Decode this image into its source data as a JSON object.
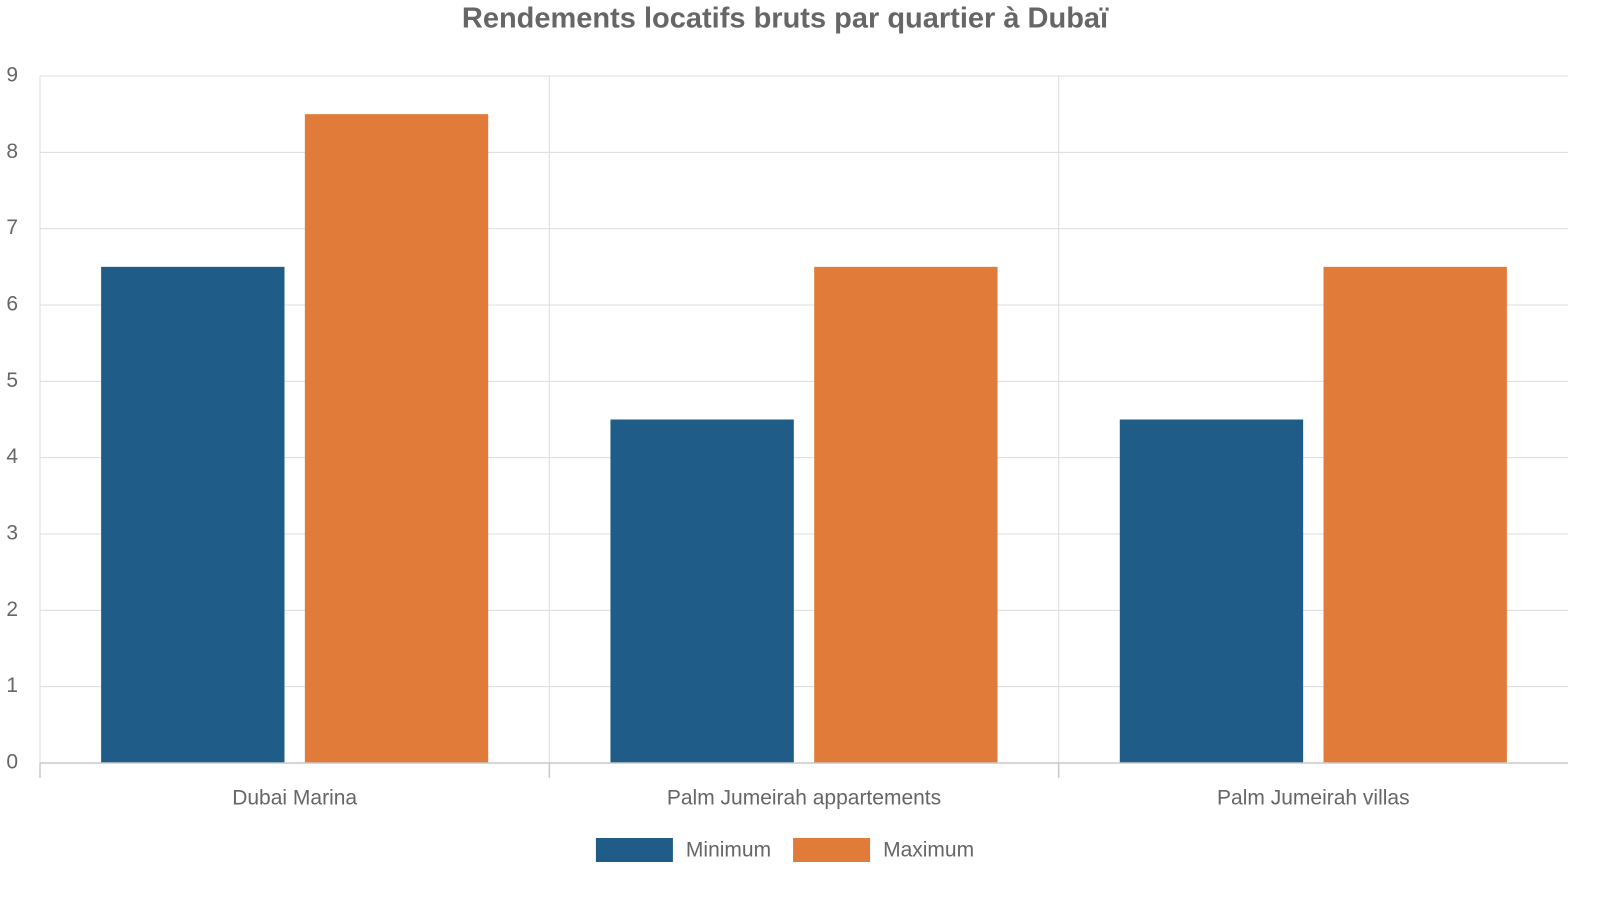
{
  "chart_data": {
    "type": "bar",
    "title": "Rendements locatifs bruts par quartier à Dubaï",
    "categories": [
      "Dubai Marina",
      "Palm Jumeirah appartements",
      "Palm Jumeirah villas"
    ],
    "series": [
      {
        "name": "Minimum",
        "color": "#1f5c87",
        "values": [
          6.5,
          4.5,
          4.5
        ]
      },
      {
        "name": "Maximum",
        "color": "#e07b39",
        "values": [
          8.5,
          6.5,
          6.5
        ]
      }
    ],
    "ylim": [
      0,
      9
    ],
    "yticks": [
      0,
      1,
      2,
      3,
      4,
      5,
      6,
      7,
      8,
      9
    ],
    "grid": true
  }
}
